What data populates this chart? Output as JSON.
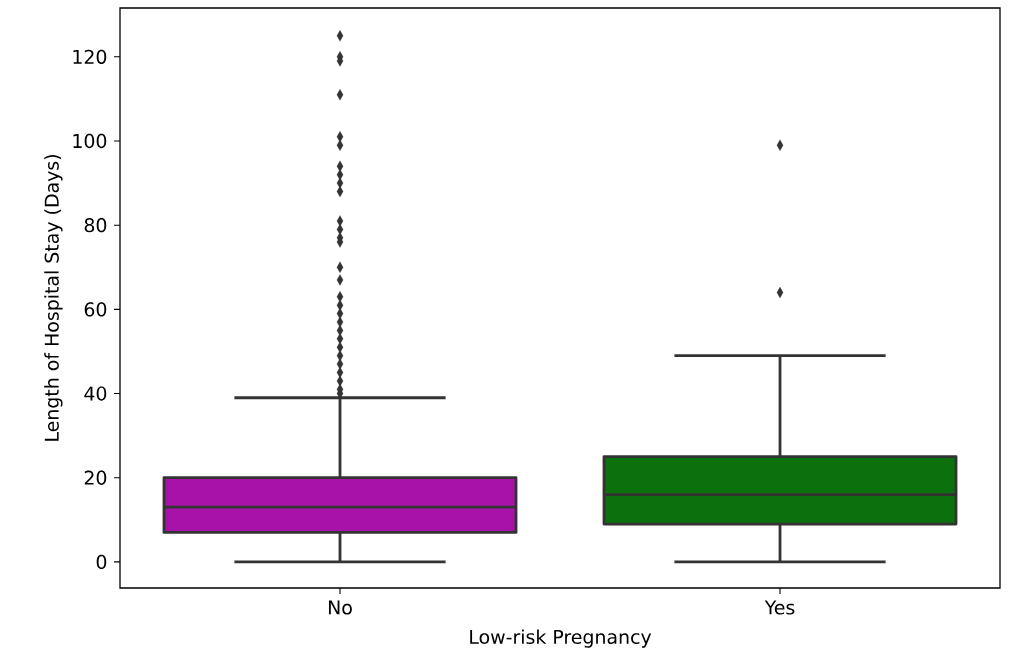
{
  "chart_data": {
    "type": "box",
    "xlabel": "Low-risk Pregnancy",
    "ylabel": "Length of Hospital Stay (Days)",
    "categories": [
      "No",
      "Yes"
    ],
    "colors": [
      "#a912a9",
      "#0c700c"
    ],
    "boxes": [
      {
        "low": 0,
        "q1": 7,
        "median": 13,
        "q3": 20,
        "high": 39,
        "outliers": [
          125,
          120,
          119,
          111,
          101,
          99,
          94,
          92,
          90,
          88,
          81,
          79,
          77,
          76,
          70,
          67,
          63,
          61,
          59,
          57,
          55,
          53,
          51,
          49,
          47,
          45,
          43,
          41,
          40
        ]
      },
      {
        "low": 0,
        "q1": 9,
        "median": 16,
        "q3": 25,
        "high": 49,
        "outliers": [
          99,
          64
        ]
      }
    ],
    "ylim": [
      -6.2,
      131.6
    ],
    "yticks": [
      0,
      20,
      40,
      60,
      80,
      100,
      120
    ],
    "marker": "diamond"
  }
}
